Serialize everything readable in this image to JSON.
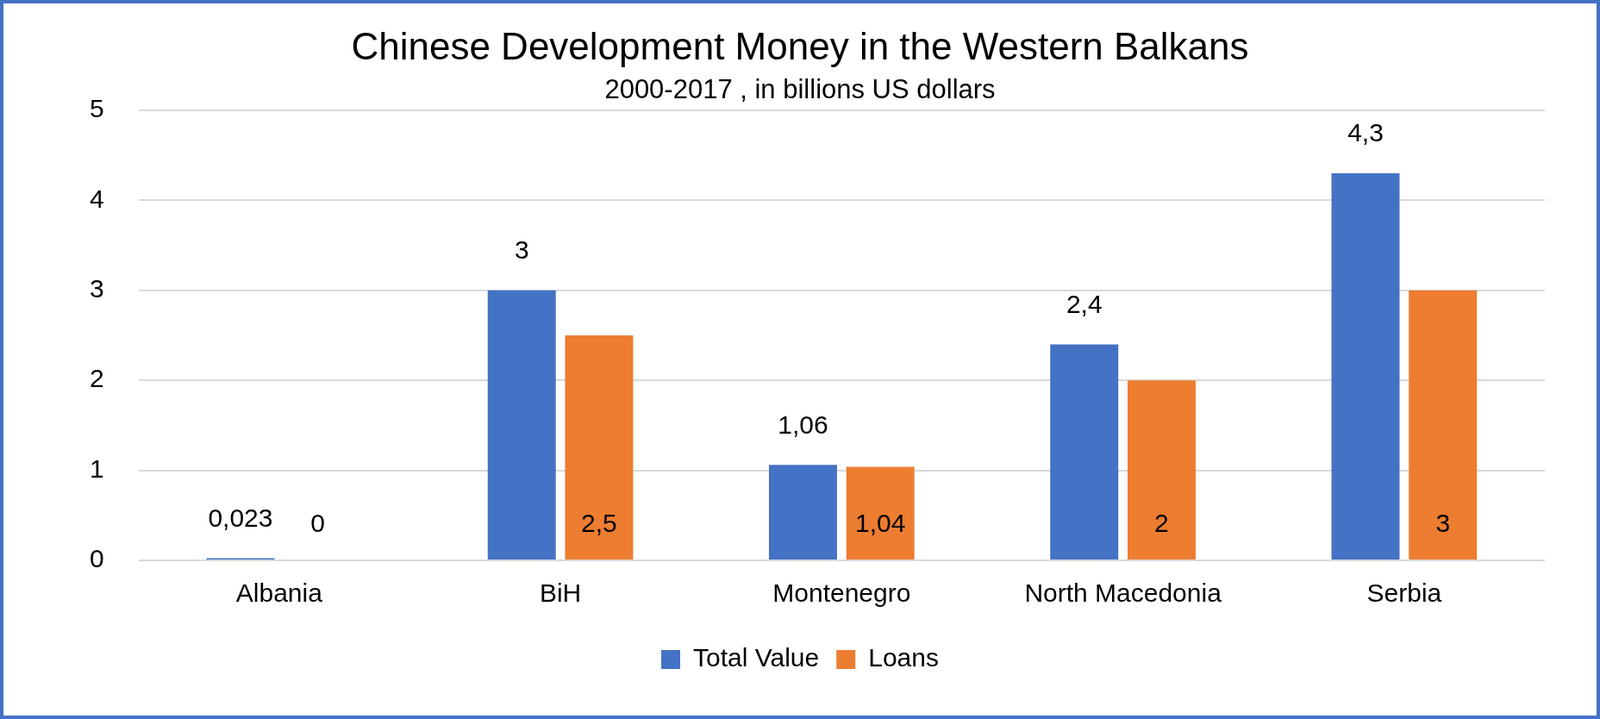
{
  "chart_data": {
    "type": "bar",
    "title": "Chinese Development Money in the Western Balkans",
    "subtitle": "2000-2017 , in billions US dollars",
    "categories": [
      "Albania",
      "BiH",
      "Montenegro",
      "North Macedonia",
      "Serbia"
    ],
    "series": [
      {
        "name": "Total Value",
        "color": "#4472c4",
        "values": [
          0.023,
          3,
          1.06,
          2.4,
          4.3
        ],
        "value_labels": [
          "0,023",
          "3",
          "1,06",
          "2,4",
          "4,3"
        ]
      },
      {
        "name": "Loans",
        "color": "#ed7d31",
        "values": [
          0,
          2.5,
          1.04,
          2,
          3
        ],
        "value_labels": [
          "0",
          "2,5",
          "1,04",
          "2",
          "3"
        ]
      }
    ],
    "ylim": [
      0,
      5
    ],
    "yticks": [
      0,
      1,
      2,
      3,
      4,
      5
    ],
    "grid": true,
    "legend": "bottom",
    "data_labels": true
  }
}
